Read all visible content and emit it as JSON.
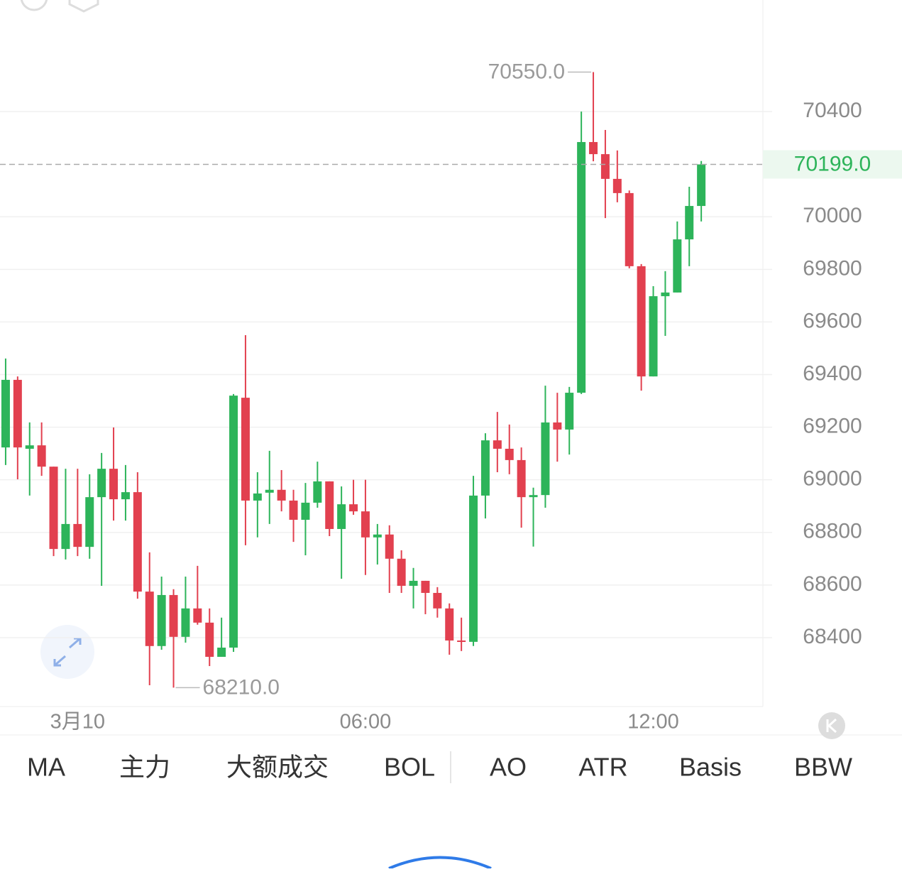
{
  "chart_data": {
    "type": "candlestick",
    "up_color": "#2db45a",
    "down_color": "#e2404f",
    "open": [
      69123,
      69380,
      69118,
      69131,
      69050,
      68737,
      68832,
      68745,
      68934,
      69042,
      68926,
      68953,
      68575,
      68368,
      68562,
      68403,
      68511,
      68457,
      68327,
      68362,
      69312,
      68921,
      68951,
      68962,
      68921,
      68848,
      68913,
      68994,
      68813,
      68907,
      68880,
      68781,
      68792,
      68700,
      68597,
      68616,
      68570,
      68511,
      68389,
      68384,
      68940,
      69150,
      69118,
      69075,
      68934,
      68942,
      69218,
      69191,
      69331,
      70284,
      70238,
      70144,
      70090,
      69812,
      69393,
      69698,
      69712,
      69914,
      70041
    ],
    "high": [
      69461,
      69393,
      69218,
      69218,
      69050,
      69042,
      69042,
      69021,
      69102,
      69199,
      69056,
      69029,
      68724,
      68632,
      68584,
      68632,
      68673,
      68511,
      68476,
      69326,
      69550,
      69029,
      69110,
      69037,
      68962,
      68988,
      69069,
      68994,
      68975,
      69000,
      69000,
      68832,
      68827,
      68732,
      68665,
      68616,
      68592,
      68530,
      68476,
      69015,
      69177,
      69258,
      69210,
      69123,
      68970,
      69358,
      69331,
      69353,
      70400,
      70550,
      70330,
      70252,
      70100,
      69820,
      69736,
      69793,
      69982,
      70114,
      70212
    ],
    "low": [
      69056,
      69002,
      68940,
      69015,
      68710,
      68697,
      68710,
      68700,
      68597,
      68845,
      68845,
      68548,
      68219,
      68354,
      68210,
      68381,
      68449,
      68292,
      68327,
      68346,
      68751,
      68781,
      68832,
      68880,
      68764,
      68713,
      68894,
      68786,
      68624,
      68867,
      68638,
      68678,
      68570,
      68570,
      68511,
      68489,
      68476,
      68335,
      68349,
      68368,
      68853,
      69029,
      69021,
      68818,
      68746,
      68894,
      69069,
      69096,
      69326,
      70211,
      69995,
      70055,
      69804,
      69339,
      69393,
      69547,
      69712,
      69812,
      69982
    ],
    "close": [
      69380,
      69123,
      69131,
      69050,
      68737,
      68832,
      68745,
      68934,
      69042,
      68926,
      68953,
      68575,
      68368,
      68562,
      68403,
      68511,
      68457,
      68327,
      68362,
      69320,
      68921,
      68948,
      68962,
      68921,
      68848,
      68913,
      68994,
      68813,
      68907,
      68880,
      68781,
      68792,
      68700,
      68597,
      68616,
      68570,
      68511,
      68389,
      68384,
      68940,
      69150,
      69118,
      69075,
      68934,
      68942,
      69218,
      69191,
      69331,
      70284,
      70238,
      70144,
      70090,
      69812,
      69393,
      69698,
      69712,
      69914,
      70041,
      70199
    ],
    "ylim": [
      68138,
      70824
    ],
    "yticks": [
      68400,
      68600,
      68800,
      69000,
      69200,
      69400,
      69600,
      69800,
      70000,
      70400
    ],
    "xlim": [
      -0.47,
      63.14
    ],
    "xticks": [
      {
        "value": 6,
        "label": "3月10"
      },
      {
        "value": 30,
        "label": "06:00"
      },
      {
        "value": 54,
        "label": "12:00"
      }
    ],
    "grid": true,
    "max_marker": {
      "value": 70550,
      "label": "70550.0"
    },
    "min_marker": {
      "value": 68210,
      "label": "68210.0"
    },
    "last_price": {
      "value": 70199,
      "label": "70199.0"
    }
  },
  "indicator_tabs": [
    "MA",
    "主力",
    "大额成交",
    "BOL",
    "AO",
    "ATR",
    "Basis",
    "BBW"
  ]
}
